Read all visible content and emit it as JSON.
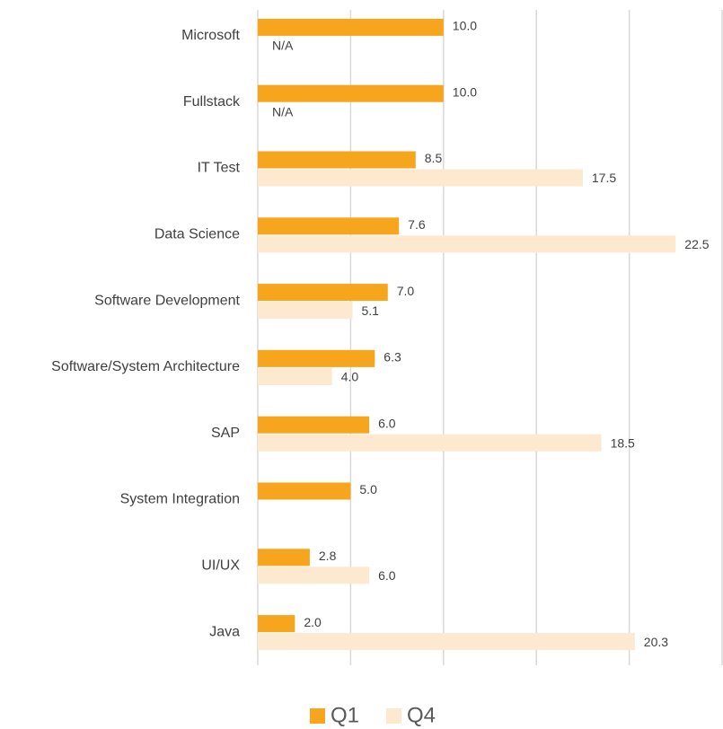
{
  "chart_data": {
    "type": "bar",
    "orientation": "horizontal",
    "categories": [
      "Microsoft",
      "Fullstack",
      "IT Test",
      "Data Science",
      "Software Development",
      "Software/System Architecture",
      "SAP",
      "System Integration",
      "UI/UX",
      "Java"
    ],
    "series": [
      {
        "name": "Q1",
        "color": "#f7a51d",
        "values": [
          10.0,
          10.0,
          8.5,
          7.6,
          7.0,
          6.3,
          6.0,
          5.0,
          2.8,
          2.0
        ],
        "value_labels": [
          "10.0",
          "10.0",
          "8.5",
          "7.6",
          "7.0",
          "6.3",
          "6.0",
          "5.0",
          "2.8",
          "2.0"
        ]
      },
      {
        "name": "Q4",
        "color": "#fce9d0",
        "values": [
          null,
          null,
          17.5,
          22.5,
          5.1,
          4.0,
          18.5,
          null,
          6.0,
          20.3
        ],
        "value_labels": [
          "N/A",
          "N/A",
          "17.5",
          "22.5",
          "5.1",
          "4.0",
          "18.5",
          null,
          "6.0",
          "20.3"
        ]
      }
    ],
    "xlim": [
      0,
      25
    ],
    "xticks": [
      0,
      5,
      10,
      15,
      20,
      25
    ],
    "grid": true,
    "legend": "bottom"
  }
}
